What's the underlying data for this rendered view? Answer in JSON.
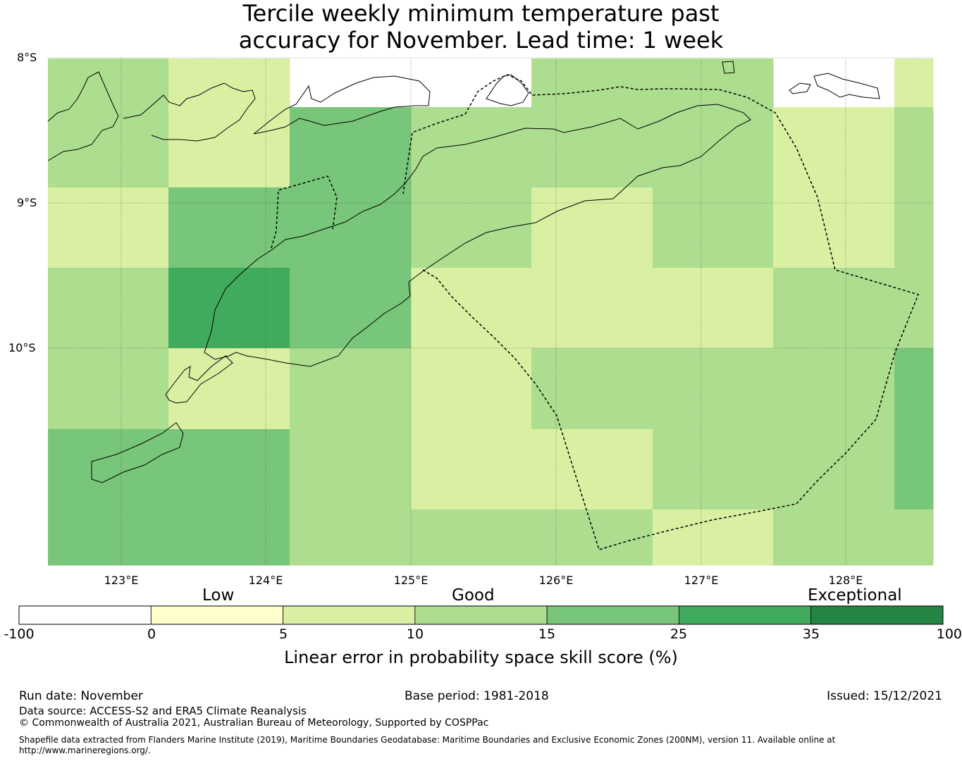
{
  "title_line1": "Tercile weekly minimum temperature past",
  "title_line2": "accuracy for November. Lead time: 1 week",
  "map": {
    "lat_labels": [
      "8°S",
      "9°S",
      "10°S"
    ],
    "lon_labels": [
      "123°E",
      "124°E",
      "125°E",
      "126°E",
      "127°E",
      "128°E"
    ],
    "grid_cell_scores_pct": [
      [
        12,
        7,
        null,
        null,
        12,
        12,
        null,
        7
      ],
      [
        12,
        7,
        18,
        12,
        12,
        12,
        7,
        12
      ],
      [
        7,
        18,
        18,
        12,
        7,
        12,
        7,
        12
      ],
      [
        12,
        30,
        18,
        7,
        7,
        7,
        12,
        12
      ],
      [
        12,
        7,
        12,
        7,
        12,
        12,
        12,
        18
      ],
      [
        18,
        18,
        12,
        7,
        7,
        12,
        12,
        18
      ],
      [
        18,
        18,
        12,
        12,
        12,
        7,
        12,
        12
      ]
    ]
  },
  "colorbar": {
    "categories": [
      "Low",
      "Good",
      "Exceptional"
    ],
    "ticks": [
      "-100",
      "0",
      "5",
      "10",
      "15",
      "25",
      "35",
      "100"
    ],
    "colors": [
      "#ffffff",
      "#ffffcc",
      "#d9f0a3",
      "#addd8e",
      "#78c679",
      "#41ab5d",
      "#238443"
    ],
    "title": "Linear error in probability space skill score (%)"
  },
  "footer": {
    "run_date": "Run date: November",
    "base_period": "Base period: 1981-2018",
    "issued": "Issued: 15/12/2021",
    "data_source": "Data source: ACCESS-S2 and ERA5 Climate Reanalysis",
    "copyright": "© Commonwealth of Australia 2021, Australian Bureau of Meteorology, Supported by COSPPac",
    "shapefile_line1": "Shapefile data extracted from Flanders Marine Institute (2019), Maritime Boundaries Geodatabase: Maritime Boundaries and Exclusive Economic Zones (200NM), version 11. Available online at",
    "shapefile_line2": "http://www.marineregions.org/."
  }
}
